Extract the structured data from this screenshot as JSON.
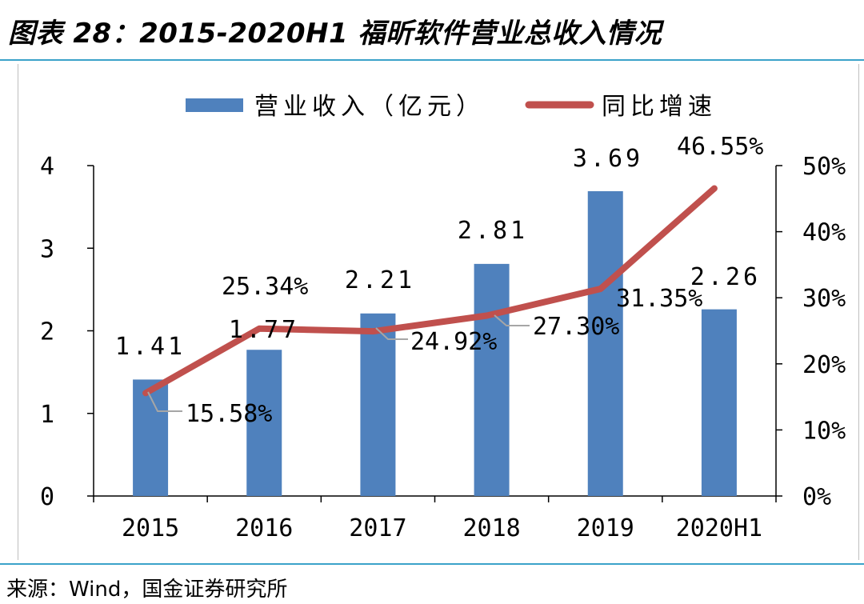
{
  "title": "图表 28：2015-2020H1 福昕软件营业总收入情况",
  "source": "来源：Wind，国金证券研究所",
  "colors": {
    "bar": "#4f81bd",
    "line": "#c0504d",
    "rule": "#3ba3c9",
    "leader": "#a6a6a6"
  },
  "chart_data": {
    "type": "bar",
    "categories": [
      "2015",
      "2016",
      "2017",
      "2018",
      "2019",
      "2020H1"
    ],
    "series": [
      {
        "name": "营业收入（亿元）",
        "type": "bar",
        "axis": "left",
        "values": [
          1.41,
          1.77,
          2.21,
          2.81,
          3.69,
          2.26
        ],
        "labels": [
          "1.41",
          "1.77",
          "2.21",
          "2.81",
          "3.69",
          "2.26"
        ]
      },
      {
        "name": "同比增速",
        "type": "line",
        "axis": "right",
        "values": [
          15.58,
          25.34,
          24.92,
          27.3,
          31.35,
          46.55
        ],
        "labels": [
          "15.58%",
          "25.34%",
          "24.92%",
          "27.30%",
          "31.35%",
          "46.55%"
        ]
      }
    ],
    "y_left": {
      "ylim": [
        0,
        4
      ],
      "ticks": [
        "0",
        "1",
        "2",
        "3",
        "4"
      ]
    },
    "y_right": {
      "ylim": [
        0,
        50
      ],
      "ticks": [
        "0%",
        "10%",
        "20%",
        "30%",
        "40%",
        "50%"
      ]
    },
    "legend_position": "top-center",
    "grid": false
  }
}
